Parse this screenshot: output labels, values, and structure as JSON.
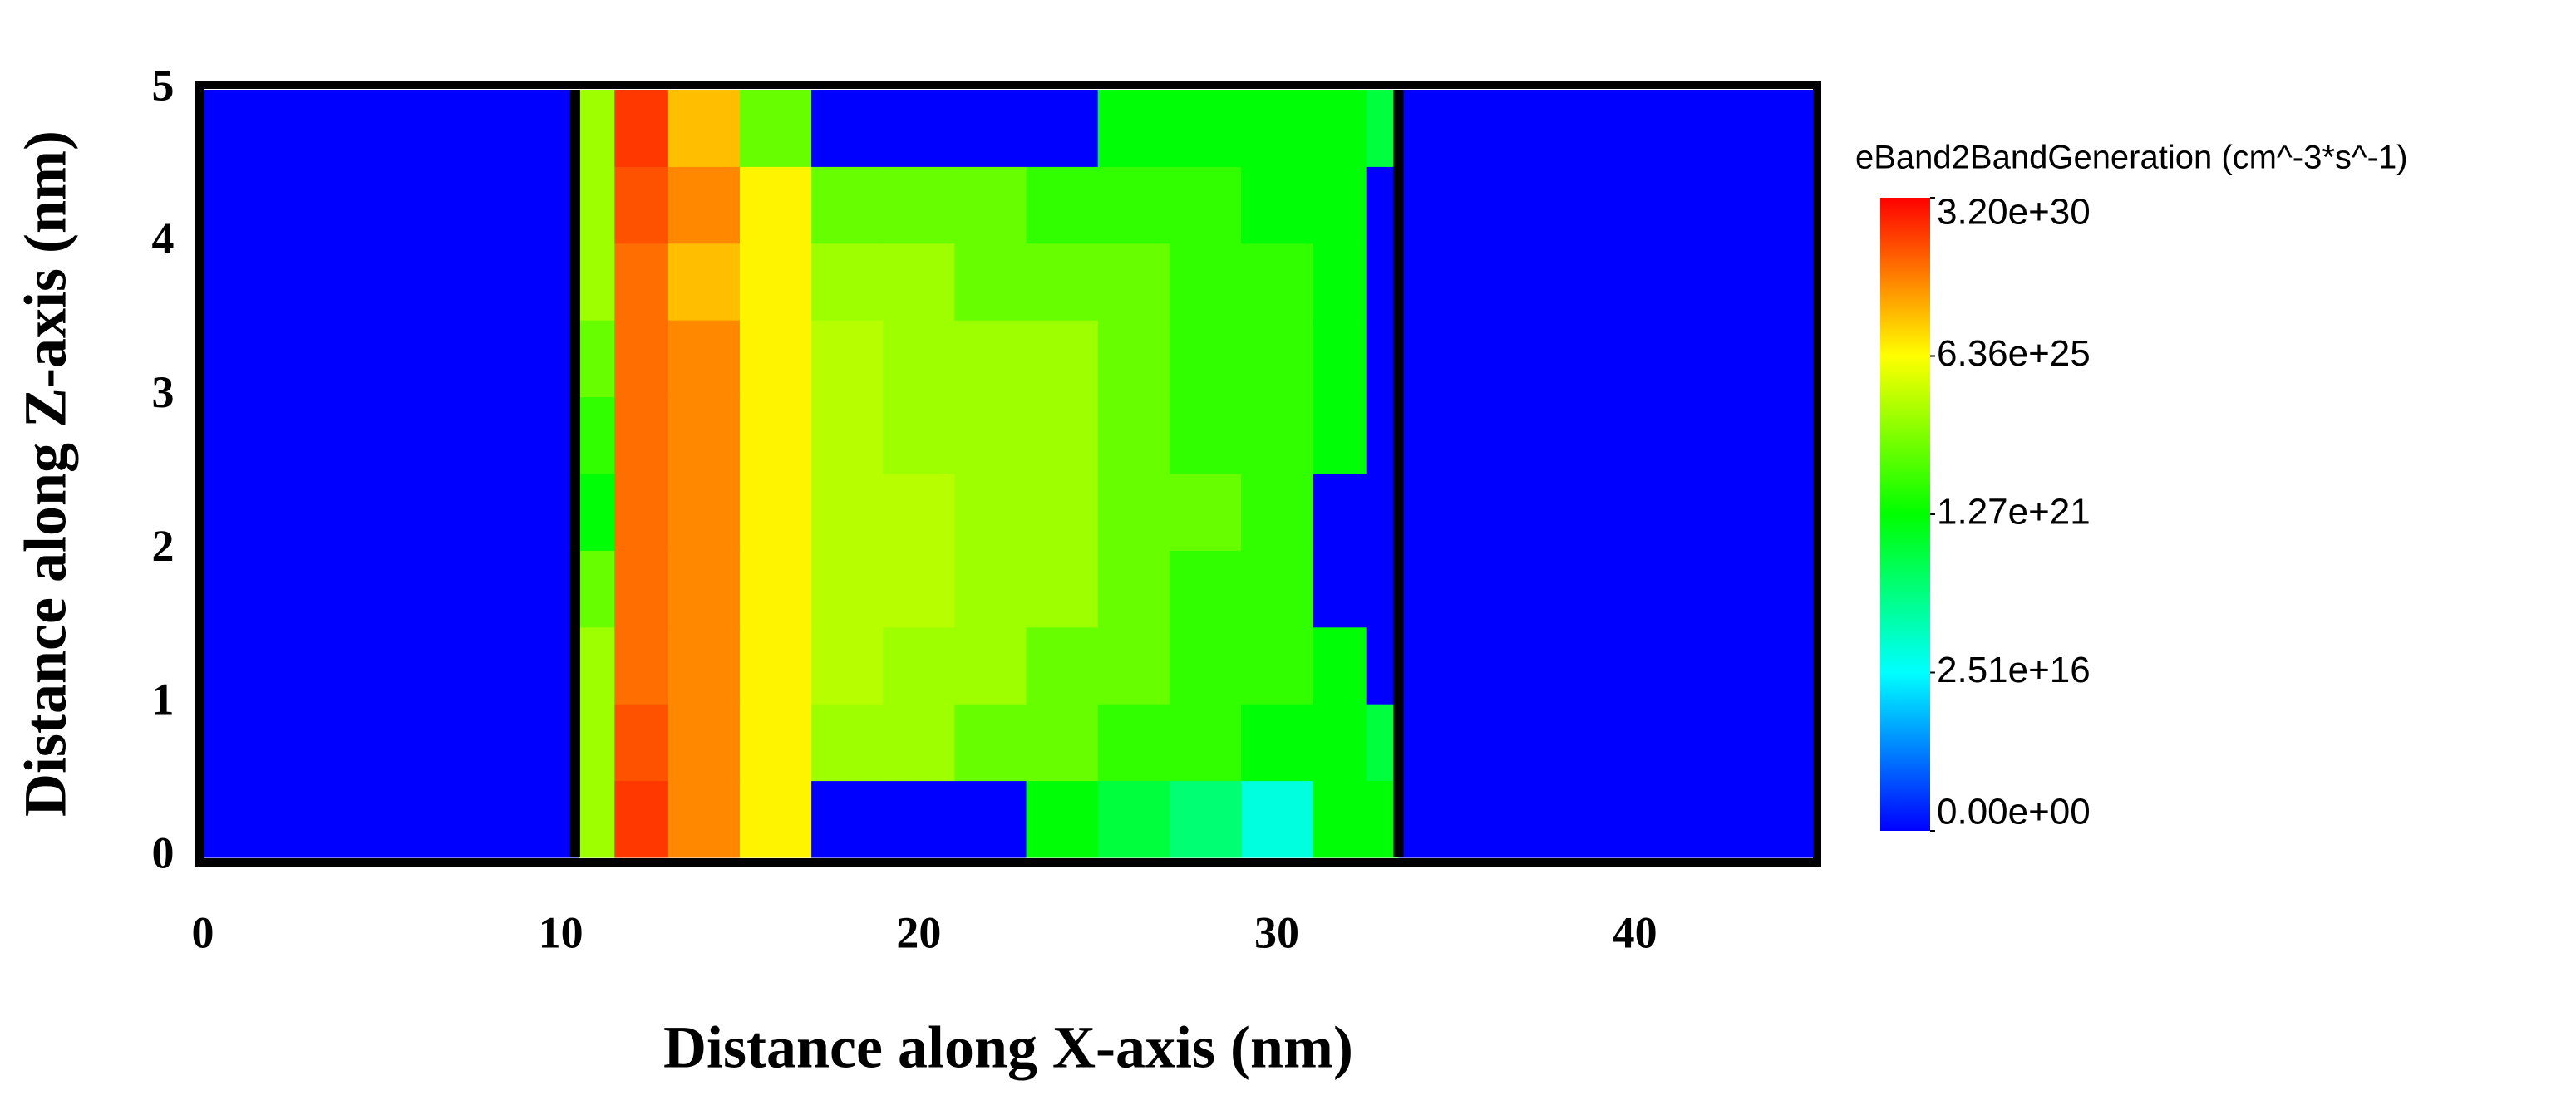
{
  "chart_data": {
    "type": "heatmap",
    "xlabel": "Distance along X-axis (nm)",
    "ylabel": "Distance along Z-axis (nm)",
    "xlim": [
      0,
      45
    ],
    "xticks": [
      0,
      10,
      20,
      30,
      40
    ],
    "ylim": [
      0,
      5
    ],
    "yticks": [
      0,
      1,
      2,
      3,
      4,
      5
    ],
    "x_edges": [
      0,
      10.5,
      11.5,
      13,
      15,
      17,
      19,
      21,
      23,
      25,
      27,
      29,
      31,
      32.5,
      33.4,
      45
    ],
    "y_edges": [
      0,
      0.5,
      1,
      1.5,
      2,
      2.5,
      3,
      3.5,
      4,
      4.5,
      5
    ],
    "z": [
      [
        0,
        1e+24,
        3e+29,
        1e+28,
        1e+26,
        0,
        0,
        0,
        1e+21,
        1e+20,
        1e+19,
        1e+17,
        1e+21,
        1e+21,
        0
      ],
      [
        0,
        1e+24,
        1e+29,
        1e+28,
        1e+26,
        1e+24,
        1e+24,
        1e+23,
        1e+23,
        1e+22,
        1e+22,
        1e+21,
        1e+21,
        1e+20,
        0
      ],
      [
        0,
        1e+24,
        3e+28,
        1e+28,
        1e+26,
        3e+24,
        1e+24,
        1e+24,
        1e+23,
        1e+23,
        1e+22,
        1e+22,
        1e+21,
        0,
        0
      ],
      [
        0,
        1e+23,
        3e+28,
        1e+28,
        1e+26,
        3e+24,
        3e+24,
        1e+24,
        1e+24,
        1e+23,
        1e+22,
        1e+22,
        0,
        0,
        0
      ],
      [
        0,
        1e+21,
        3e+28,
        1e+28,
        1e+26,
        3e+24,
        3e+24,
        1e+24,
        1e+24,
        1e+23,
        1e+23,
        1e+22,
        0,
        0,
        0
      ],
      [
        0,
        1e+22,
        3e+28,
        1e+28,
        1e+26,
        3e+24,
        1e+24,
        1e+24,
        1e+24,
        1e+23,
        1e+22,
        1e+22,
        1e+21,
        0,
        0
      ],
      [
        0,
        1e+23,
        3e+28,
        1e+28,
        1e+26,
        3e+24,
        1e+24,
        1e+24,
        1e+24,
        1e+23,
        1e+22,
        1e+22,
        1e+21,
        0,
        0
      ],
      [
        0,
        1e+24,
        3e+28,
        1e+27,
        1e+26,
        1e+24,
        1e+24,
        1e+23,
        1e+23,
        1e+23,
        1e+22,
        1e+22,
        1e+21,
        0,
        0
      ],
      [
        0,
        1e+24,
        1e+29,
        1e+28,
        1e+26,
        1e+23,
        1e+23,
        1e+23,
        1e+22,
        1e+22,
        1e+22,
        1e+21,
        1e+21,
        0,
        0
      ],
      [
        0,
        1e+24,
        3e+29,
        1e+27,
        1e+23,
        0,
        0,
        0,
        0,
        1e+21,
        1e+21,
        1e+21,
        1e+21,
        1e+20,
        0
      ]
    ],
    "boundaries": [
      10.4,
      33.4
    ],
    "colorbar_title": "eBand2BandGeneration (cm^-3*s^-1)",
    "colorbar_ticks": [
      {
        "value": 0,
        "label": "0.00e+00"
      },
      {
        "value": 2.51e+16,
        "label": "2.51e+16"
      },
      {
        "value": 1.27e+21,
        "label": "1.27e+21"
      },
      {
        "value": 6.36e+25,
        "label": "6.36e+25"
      },
      {
        "value": 3.2e+30,
        "label": "3.20e+30"
      }
    ],
    "colormap": [
      "#0000ff",
      "#00ffff",
      "#00ff00",
      "#ffff00",
      "#ff0000"
    ]
  }
}
